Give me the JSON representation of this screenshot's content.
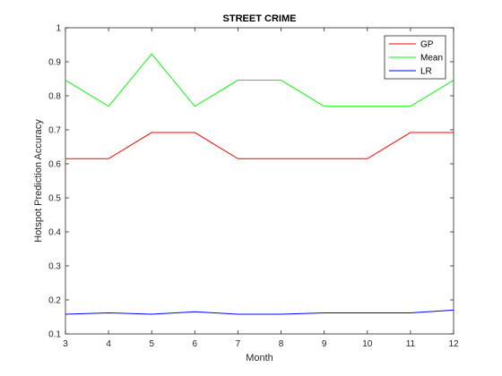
{
  "chart_data": {
    "type": "line",
    "title": "STREET CRIME",
    "xlabel": "Month",
    "ylabel": "Hotspot Prediction Accuracy",
    "x": [
      3,
      4,
      5,
      6,
      7,
      8,
      9,
      10,
      11,
      12
    ],
    "xlim": [
      3,
      12
    ],
    "ylim": [
      0.1,
      1
    ],
    "xticks": [
      3,
      4,
      5,
      6,
      7,
      8,
      9,
      10,
      11,
      12
    ],
    "yticks": [
      0.1,
      0.2,
      0.3,
      0.4,
      0.5,
      0.6,
      0.7,
      0.8,
      0.9,
      1
    ],
    "ytick_labels": [
      "0.1",
      "0.2",
      "0.3",
      "0.4",
      "0.5",
      "0.6",
      "0.7",
      "0.8",
      "0.9",
      "1"
    ],
    "grid": false,
    "legend_position": "top-right",
    "series": [
      {
        "name": "GP",
        "color": "#ff0000",
        "values": [
          0.615,
          0.615,
          0.692,
          0.692,
          0.615,
          0.615,
          0.615,
          0.615,
          0.692,
          0.692
        ]
      },
      {
        "name": "Mean",
        "color": "#00ff00",
        "values": [
          0.846,
          0.769,
          0.923,
          0.769,
          0.846,
          0.846,
          0.769,
          0.769,
          0.769,
          0.846
        ]
      },
      {
        "name": "LR",
        "color": "#0000ff",
        "values": [
          0.158,
          0.162,
          0.158,
          0.165,
          0.158,
          0.158,
          0.162,
          0.162,
          0.162,
          0.17
        ]
      }
    ]
  }
}
